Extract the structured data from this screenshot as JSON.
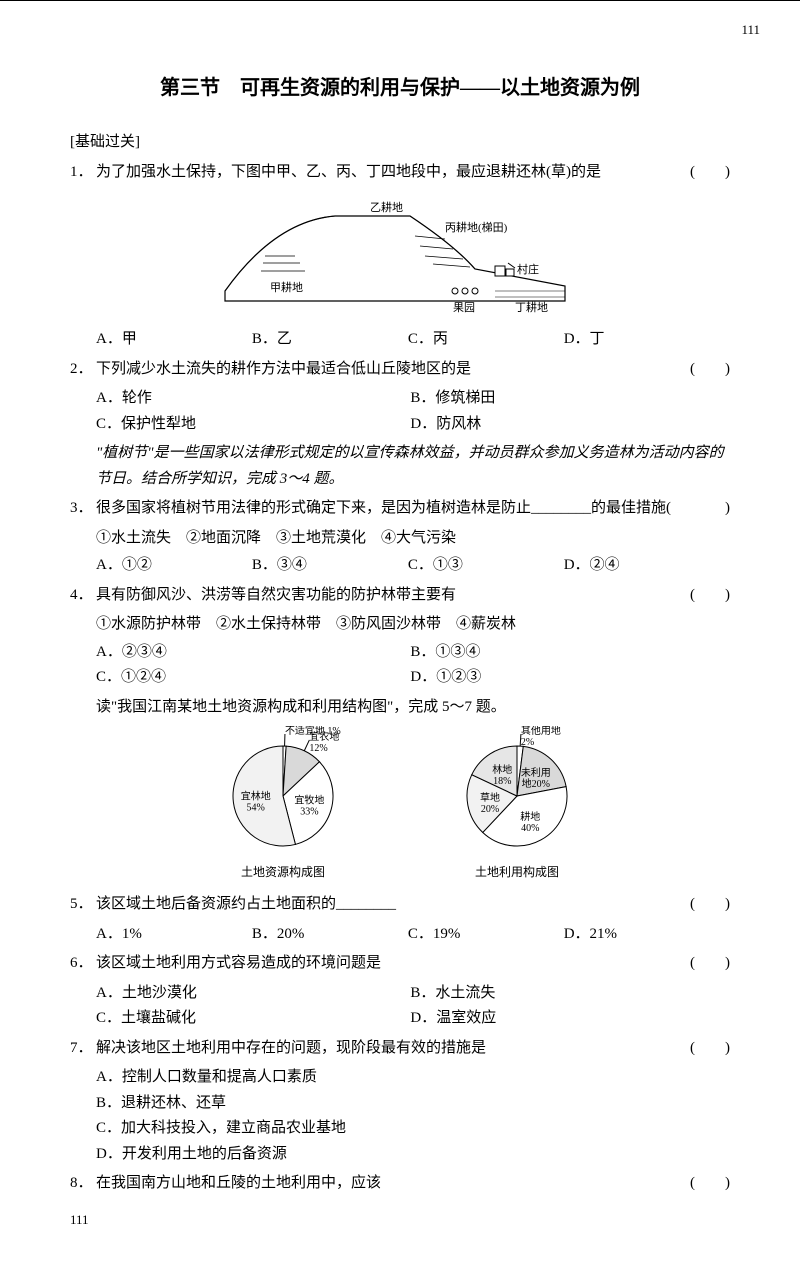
{
  "pageNumber": "111",
  "footer": "111",
  "title": "第三节　可再生资源的利用与保护——以土地资源为例",
  "sectionLabel": "[基础过关]",
  "paren": "(　　)",
  "q1": {
    "num": "1．",
    "text": "为了加强水土保持，下图中甲、乙、丙、丁四地段中，最应退耕还林(草)的是",
    "opts": [
      "A．甲",
      "B．乙",
      "C．丙",
      "D．丁"
    ]
  },
  "fig1": {
    "labels": {
      "jia": "甲耕地",
      "yi": "乙耕地",
      "bing": "丙耕地(梯田)",
      "cun": "村庄",
      "guo": "果园",
      "ding": "丁耕地"
    }
  },
  "q2": {
    "num": "2．",
    "text": "下列减少水土流失的耕作方法中最适合低山丘陵地区的是",
    "opts": [
      "A．轮作",
      "B．修筑梯田",
      "C．保护性犁地",
      "D．防风林"
    ]
  },
  "intro34": "\"植树节\"是一些国家以法律形式规定的以宣传森林效益，并动员群众参加义务造林为活动内容的节日。结合所学知识，完成 3～4 题。",
  "q3": {
    "num": "3．",
    "text": "很多国家将植树节用法律的形式确定下来，是因为植树造林是防止________的最佳措施(",
    "items": "①水土流失　②地面沉降　③土地荒漠化　④大气污染",
    "opts": [
      "A．①②",
      "B．③④",
      "C．①③",
      "D．②④"
    ]
  },
  "q4": {
    "num": "4．",
    "text": "具有防御风沙、洪涝等自然灾害功能的防护林带主要有",
    "items": "①水源防护林带　②水土保持林带　③防风固沙林带　④薪炭林",
    "opts": [
      "A．②③④",
      "B．①③④",
      "C．①②④",
      "D．①②③"
    ]
  },
  "intro57": "读\"我国江南某地土地资源构成和利用结构图\"，完成 5～7 题。",
  "fig2": {
    "pie1": {
      "caption": "土地资源构成图",
      "slices": [
        {
          "label": "不适宜地 1%",
          "value": 1,
          "color": "#ffffff"
        },
        {
          "label": "宜农地\n12%",
          "value": 12,
          "color": "#d9d9d9"
        },
        {
          "label": "宜牧地\n33%",
          "value": 33,
          "color": "#ffffff"
        },
        {
          "label": "宜林地\n54%",
          "value": 54,
          "color": "#f2f2f2"
        }
      ]
    },
    "pie2": {
      "caption": "土地利用构成图",
      "slices": [
        {
          "label": "其他用地\n2%",
          "value": 2,
          "color": "#ffffff"
        },
        {
          "label": "未利用\n地20%",
          "value": 20,
          "color": "#d9d9d9"
        },
        {
          "label": "耕地\n40%",
          "value": 40,
          "color": "#ffffff"
        },
        {
          "label": "草地\n20%",
          "value": 20,
          "color": "#f2f2f2"
        },
        {
          "label": "林地\n18%",
          "value": 18,
          "color": "#e6e6e6"
        }
      ]
    }
  },
  "q5": {
    "num": "5．",
    "text": "该区域土地后备资源约占土地面积的________",
    "opts": [
      "A．1%",
      "B．20%",
      "C．19%",
      "D．21%"
    ]
  },
  "q6": {
    "num": "6．",
    "text": "该区域土地利用方式容易造成的环境问题是",
    "opts": [
      "A．土地沙漠化",
      "B．水土流失",
      "C．土壤盐碱化",
      "D．温室效应"
    ]
  },
  "q7": {
    "num": "7．",
    "text": "解决该地区土地利用中存在的问题，现阶段最有效的措施是",
    "opts": [
      "A．控制人口数量和提高人口素质",
      "B．退耕还林、还草",
      "C．加大科技投入，建立商品农业基地",
      "D．开发利用土地的后备资源"
    ]
  },
  "q8": {
    "num": "8．",
    "text": "在我国南方山地和丘陵的土地利用中，应该"
  }
}
